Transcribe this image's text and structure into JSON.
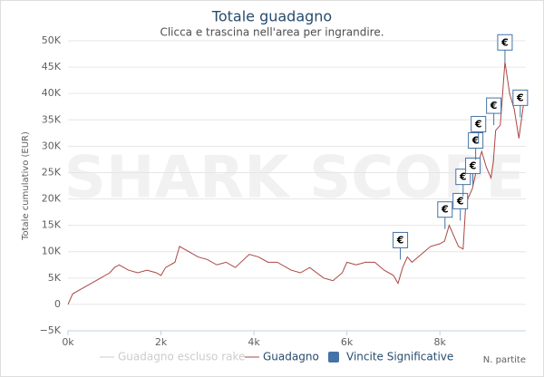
{
  "chart_data": {
    "type": "line",
    "title": "Totale guadagno",
    "subtitle": "Clicca e trascina nell'area per ingrandire.",
    "watermark": "SHARK SCOPE",
    "y_label": "Totale cumulativo (EUR)",
    "x_label": "N. partite",
    "xlim": [
      0,
      9850
    ],
    "ylim": [
      -5000,
      50000
    ],
    "xticks": [
      {
        "value": 0,
        "label": "0k"
      },
      {
        "value": 2000,
        "label": "2k"
      },
      {
        "value": 4000,
        "label": "4k"
      },
      {
        "value": 6000,
        "label": "6k"
      },
      {
        "value": 8000,
        "label": "8k"
      }
    ],
    "yticks": [
      {
        "value": -5000,
        "label": "−5K"
      },
      0,
      {
        "value": 5000,
        "label": "5K"
      },
      {
        "value": 10000,
        "label": "10K"
      },
      {
        "value": 15000,
        "label": "15K"
      },
      {
        "value": 20000,
        "label": "20K"
      },
      {
        "value": 25000,
        "label": "25K"
      },
      {
        "value": 30000,
        "label": "30K"
      },
      {
        "value": 35000,
        "label": "35K"
      },
      {
        "value": 40000,
        "label": "40K"
      },
      {
        "value": 45000,
        "label": "45K"
      },
      {
        "value": 50000,
        "label": "50K"
      }
    ],
    "grid": true,
    "series": [
      {
        "name": "Guadagno escluso rake",
        "color": "#cccccc",
        "visible": false
      },
      {
        "name": "Guadagno",
        "color": "#aa4643",
        "x": [
          0,
          100,
          300,
          500,
          700,
          900,
          1000,
          1100,
          1300,
          1500,
          1700,
          1900,
          2000,
          2100,
          2300,
          2400,
          2600,
          2800,
          3000,
          3200,
          3400,
          3600,
          3900,
          4100,
          4300,
          4500,
          4800,
          5000,
          5200,
          5500,
          5700,
          5900,
          6000,
          6200,
          6400,
          6600,
          6800,
          7000,
          7100,
          7200,
          7300,
          7400,
          7600,
          7800,
          8000,
          8100,
          8200,
          8300,
          8400,
          8500,
          8550,
          8600,
          8700,
          8800,
          8900,
          9000,
          9100,
          9150,
          9200,
          9300,
          9400,
          9500,
          9600,
          9700,
          9800
        ],
        "values": [
          0,
          2000,
          3000,
          4000,
          5000,
          6000,
          7000,
          7500,
          6500,
          6000,
          6500,
          6000,
          5500,
          7000,
          8000,
          11000,
          10000,
          9000,
          8500,
          7500,
          8000,
          7000,
          9500,
          9000,
          8000,
          8000,
          6500,
          6000,
          7000,
          5000,
          4500,
          6000,
          8000,
          7500,
          8000,
          8000,
          6500,
          5500,
          4000,
          7000,
          9000,
          8000,
          9500,
          11000,
          11500,
          12000,
          15000,
          13000,
          11000,
          10500,
          18000,
          20000,
          22000,
          26000,
          29000,
          26000,
          24000,
          27000,
          33000,
          34000,
          46000,
          40000,
          37000,
          31500,
          38000
        ]
      },
      {
        "name": "Vincite Significative",
        "color": "#4572a7",
        "flag_label": "€",
        "x": [
          7150,
          8110,
          8440,
          8500,
          8710,
          8770,
          8830,
          9160,
          9400,
          9730
        ],
        "values": [
          8500,
          14300,
          15900,
          20500,
          22600,
          27400,
          30500,
          34000,
          46000,
          35500
        ]
      }
    ]
  }
}
